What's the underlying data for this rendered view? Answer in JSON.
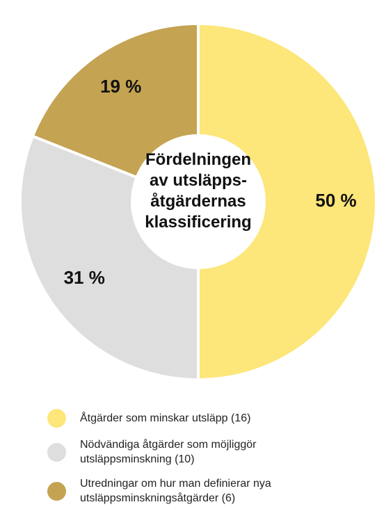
{
  "chart_data": {
    "type": "donut",
    "title": "Fördelningen av utsläpps-åtgärdernas klassificering",
    "categories": [
      "Åtgärder som minskar utsläpp (16)",
      "Nödvändiga åtgärder som möjliggör utsläppsminskning (10)",
      "Utredningar om hur man definierar nya utsläppsminskningsåtgärder (6)"
    ],
    "values": [
      50,
      31,
      19
    ],
    "value_labels": [
      "50 %",
      "31 %",
      "19 %"
    ],
    "colors": [
      "#fde67a",
      "#dededf",
      "#c4a352"
    ]
  }
}
